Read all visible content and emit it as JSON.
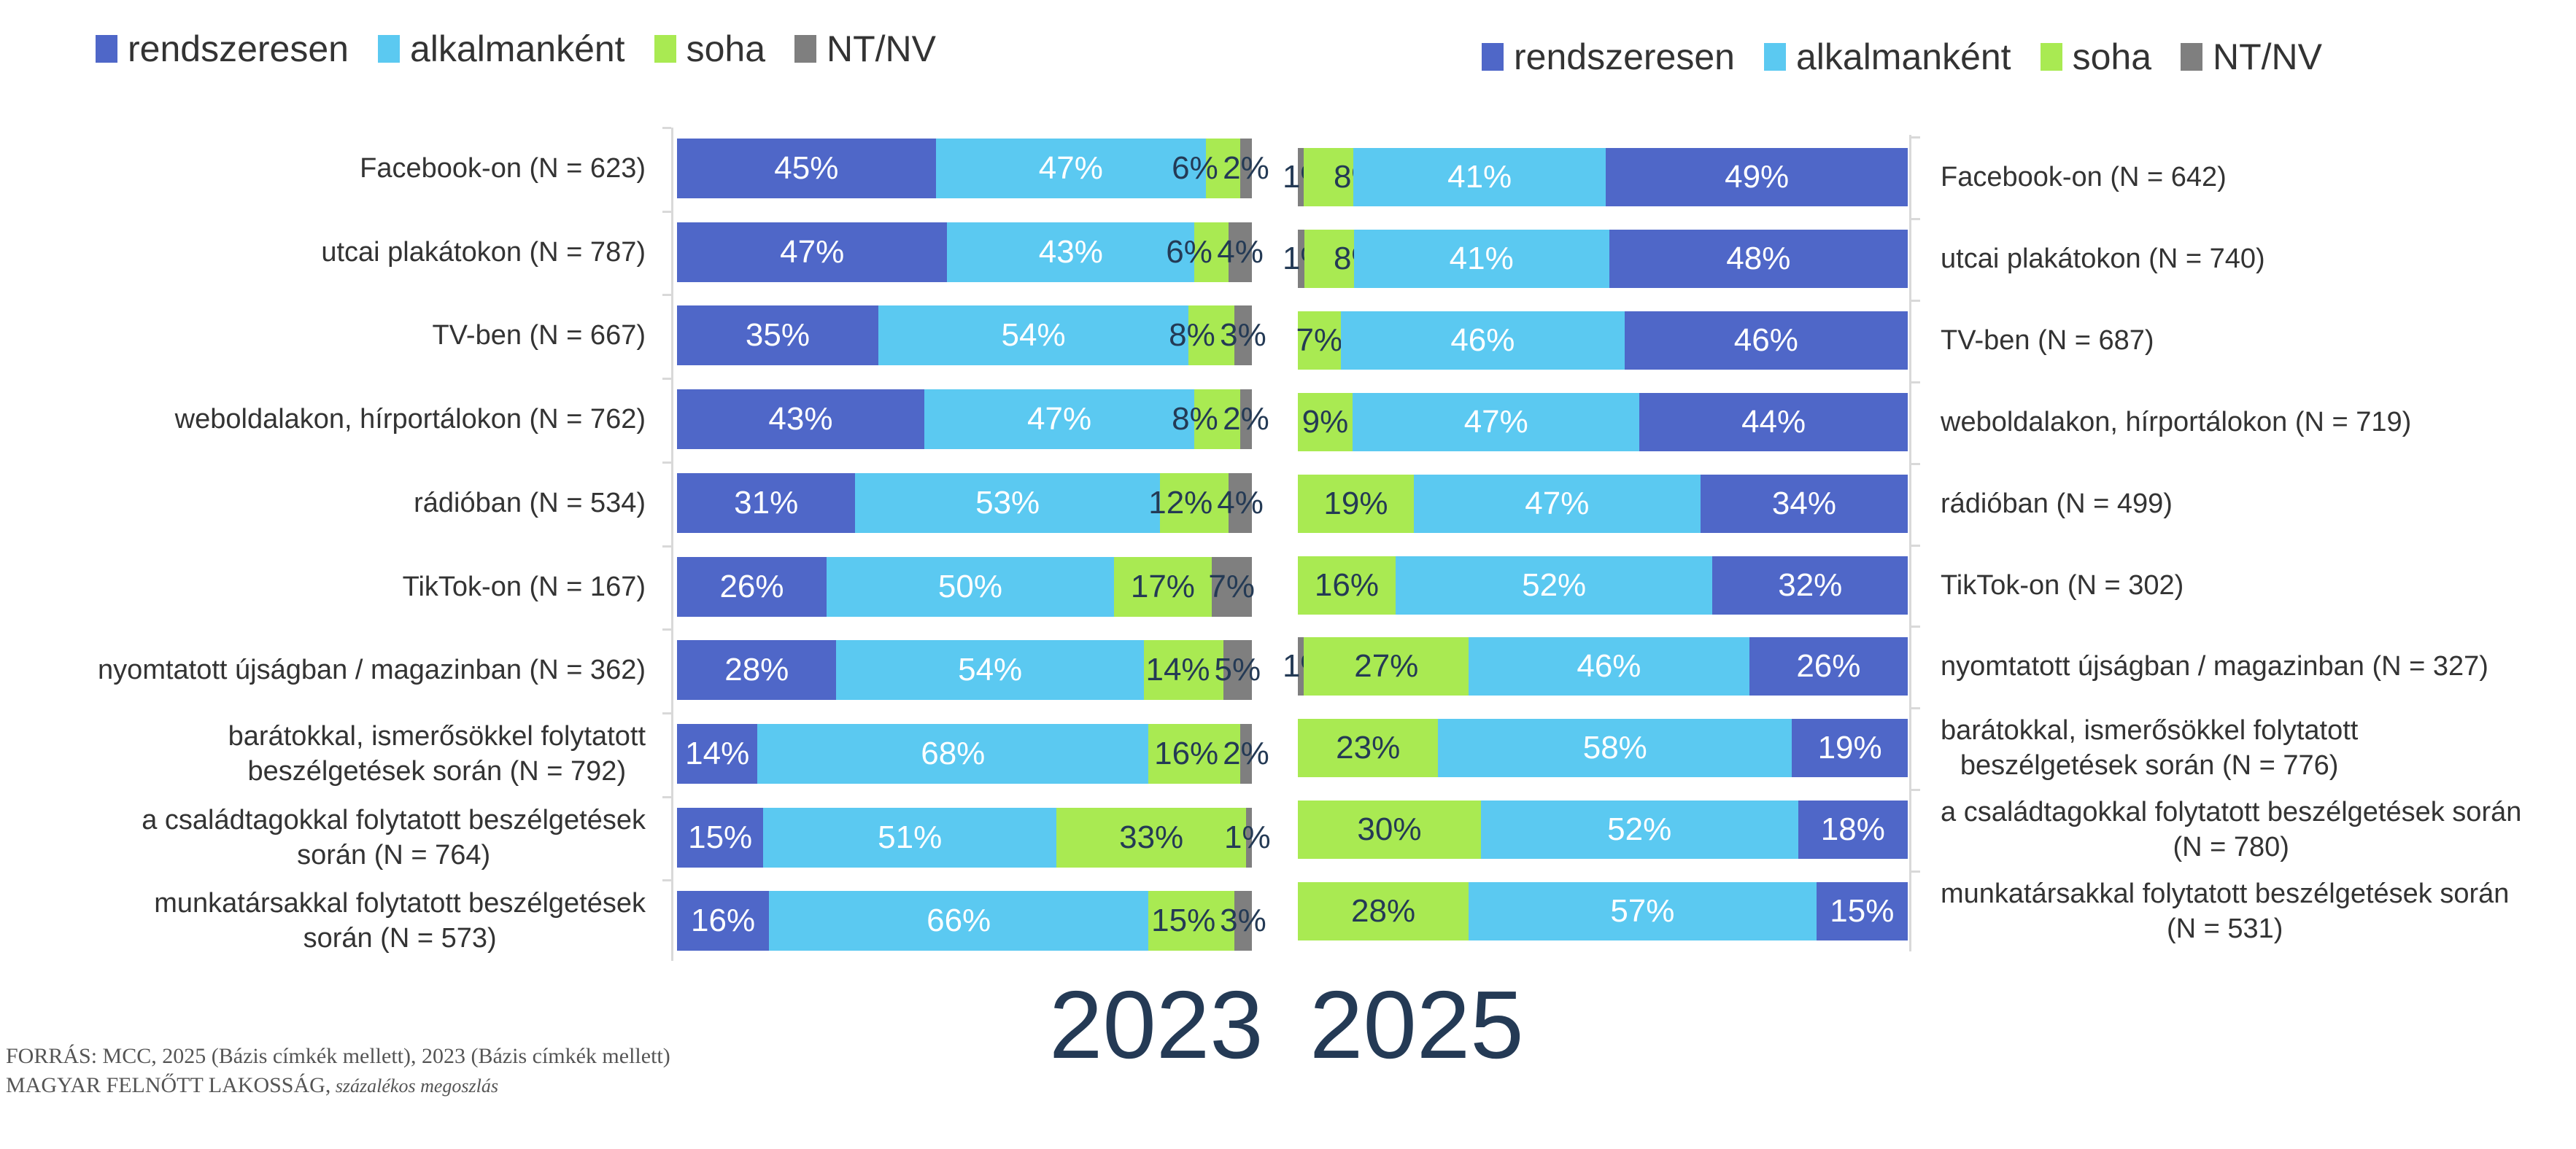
{
  "colors": {
    "rendszeresen": "#4f67c8",
    "alkalmankent": "#5bc9f1",
    "soha": "#a9ea52",
    "ntnv": "#7f7f7f",
    "dark_label": "#243a55"
  },
  "chart_data": [
    {
      "type": "bar",
      "orientation": "horizontal",
      "stacked": true,
      "title": "2023",
      "legend": [
        "rendszeresen",
        "alkalmanként",
        "soha",
        "NT/NV"
      ],
      "legend_position": "top-left",
      "xlim": [
        0,
        100
      ],
      "unit": "%",
      "categories": [
        [
          "Facebook-on (N = 623)"
        ],
        [
          "utcai plakátokon (N = 787)"
        ],
        [
          "TV-ben (N = 667)"
        ],
        [
          "weboldalakon, hírportálokon (N = 762)"
        ],
        [
          "rádióban (N = 534)"
        ],
        [
          "TikTok-on (N = 167)"
        ],
        [
          "nyomtatott újságban / magazinban (N = 362)"
        ],
        [
          "barátokkal, ismerősökkel folytatott",
          "beszélgetések során (N = 792)"
        ],
        [
          "a családtagokkal folytatott beszélgetések",
          "során (N = 764)"
        ],
        [
          "munkatársakkal folytatott beszélgetések",
          "során (N = 573)"
        ]
      ],
      "series": [
        {
          "name": "rendszeresen",
          "values": [
            45,
            47,
            35,
            43,
            31,
            26,
            28,
            14,
            15,
            16
          ]
        },
        {
          "name": "alkalmanként",
          "values": [
            47,
            43,
            54,
            47,
            53,
            50,
            54,
            68,
            51,
            66
          ]
        },
        {
          "name": "soha",
          "values": [
            6,
            6,
            8,
            8,
            12,
            17,
            14,
            16,
            33,
            15
          ]
        },
        {
          "name": "NT/NV",
          "values": [
            2,
            4,
            3,
            2,
            4,
            7,
            5,
            2,
            1,
            3
          ]
        }
      ]
    },
    {
      "type": "bar",
      "orientation": "horizontal",
      "stacked": true,
      "title": "2025",
      "reversed": true,
      "legend": [
        "rendszeresen",
        "alkalmanként",
        "soha",
        "NT/NV"
      ],
      "legend_position": "top-right",
      "xlim": [
        0,
        100
      ],
      "unit": "%",
      "categories": [
        [
          "Facebook-on (N = 642)"
        ],
        [
          "utcai plakátokon (N = 740)"
        ],
        [
          "TV-ben (N = 687)"
        ],
        [
          "weboldalakon, hírportálokon (N = 719)"
        ],
        [
          "rádióban (N = 499)"
        ],
        [
          "TikTok-on (N = 302)"
        ],
        [
          "nyomtatott újságban / magazinban (N = 327)"
        ],
        [
          "barátokkal, ismerősökkel folytatott",
          "beszélgetések során (N = 776)"
        ],
        [
          "a családtagokkal folytatott beszélgetések során",
          "(N = 780)"
        ],
        [
          "munkatársakkal folytatott beszélgetések során",
          "(N = 531)"
        ]
      ],
      "series": [
        {
          "name": "rendszeresen",
          "values": [
            49,
            48,
            46,
            44,
            34,
            32,
            26,
            19,
            18,
            15
          ]
        },
        {
          "name": "alkalmanként",
          "values": [
            41,
            41,
            46,
            47,
            47,
            52,
            46,
            58,
            52,
            57
          ]
        },
        {
          "name": "soha",
          "values": [
            8,
            8,
            7,
            9,
            19,
            16,
            27,
            23,
            30,
            28
          ]
        },
        {
          "name": "NT/NV",
          "values": [
            1,
            1,
            0,
            0,
            0,
            0,
            1,
            0,
            0,
            0
          ]
        }
      ]
    }
  ],
  "footer": {
    "line1": "FORRÁS: MCC, 2025 (Bázis címkék mellett), 2023 (Bázis címkék mellett)",
    "line2_caps": "MAGYAR FELNŐTT LAKOSSÁG,",
    "line2_rest": " százalékos megoszlás"
  }
}
